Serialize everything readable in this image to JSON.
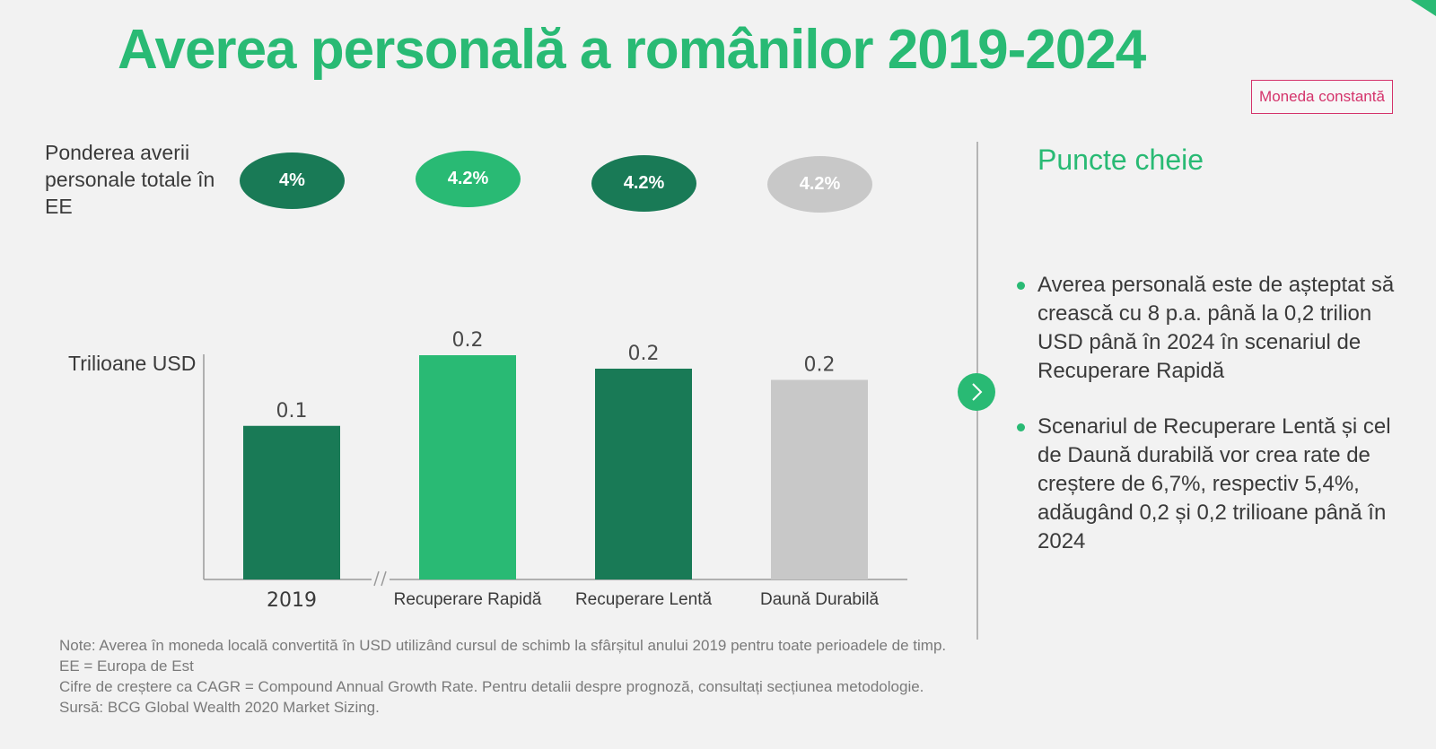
{
  "title": "Averea personală a românilor 2019-2024",
  "badge": "Moneda constantă",
  "share_label": "Ponderea averii personale totale în EE",
  "shares": [
    {
      "value": "4%",
      "color": "#197a56"
    },
    {
      "value": "4.2%",
      "color": "#29ba74"
    },
    {
      "value": "4.2%",
      "color": "#197a56"
    },
    {
      "value": "4.2%",
      "color": "#c8c8c8"
    }
  ],
  "chart_data": {
    "type": "bar",
    "title": "Averea personală a românilor 2019-2024",
    "ylabel": "Trilioane USD",
    "categories": [
      "2019",
      "Recuperare Rapidă",
      "Recuperare Lentă",
      "Daună Durabilă"
    ],
    "values": [
      0.1,
      0.2,
      0.2,
      0.2
    ],
    "plot_values": [
      0.137,
      0.2,
      0.188,
      0.178
    ],
    "data_labels": [
      "0.1",
      "0.2",
      "0.2",
      "0.2"
    ],
    "colors": [
      "#197a56",
      "#29ba74",
      "#197a56",
      "#c8c8c8"
    ],
    "axis_break_after": 0,
    "ylim": [
      0,
      0.2
    ],
    "grid": false,
    "legend": "none"
  },
  "panel": {
    "title": "Puncte cheie",
    "bullets": [
      "Averea personală este de așteptat să crească cu 8 p.a. până la 0,2 trilion USD până în 2024 în scenariul de Recuperare Rapidă",
      "Scenariul de Recuperare Lentă și cel de Daună durabilă vor crea rate de creștere de 6,7%, respectiv 5,4%, adăugând 0,2 și 0,2 trilioane până în 2024"
    ]
  },
  "notes": [
    "Note: Averea în moneda locală convertită în USD utilizând cursul de schimb la sfârșitul anului 2019 pentru toate perioadele de timp.",
    "EE = Europa de Est",
    "Cifre de creștere ca CAGR = Compound Annual Growth Rate. Pentru detalii despre prognoză, consultați secțiunea metodologie.",
    "Sursă: BCG Global Wealth 2020 Market Sizing."
  ]
}
